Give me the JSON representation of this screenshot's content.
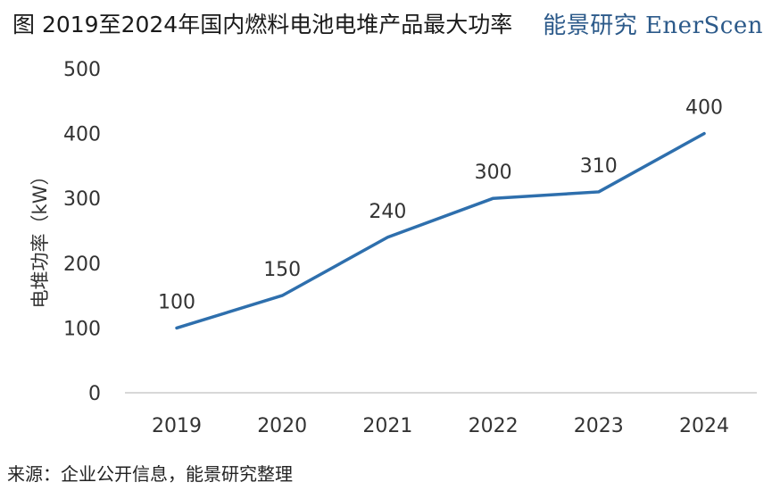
{
  "header": {
    "title": "图 2019至2024年国内燃料电池电堆产品最大功率",
    "brand": "能景研究 EnerScen"
  },
  "footer": {
    "source": "来源：企业公开信息，能景研究整理"
  },
  "chart_data": {
    "type": "line",
    "categories": [
      "2019",
      "2020",
      "2021",
      "2022",
      "2023",
      "2024"
    ],
    "series": [
      {
        "values": [
          100,
          150,
          240,
          300,
          310,
          400
        ]
      }
    ],
    "data_labels": [
      "100",
      "150",
      "240",
      "300",
      "310",
      "400"
    ],
    "ylabel": "电堆功率（kW）",
    "ylim": [
      0,
      500
    ],
    "yticks": [
      0,
      100,
      200,
      300,
      400,
      500
    ],
    "grid": false,
    "legend": "none",
    "line_color": "#2e6fad",
    "axis_color": "#cccccc"
  }
}
